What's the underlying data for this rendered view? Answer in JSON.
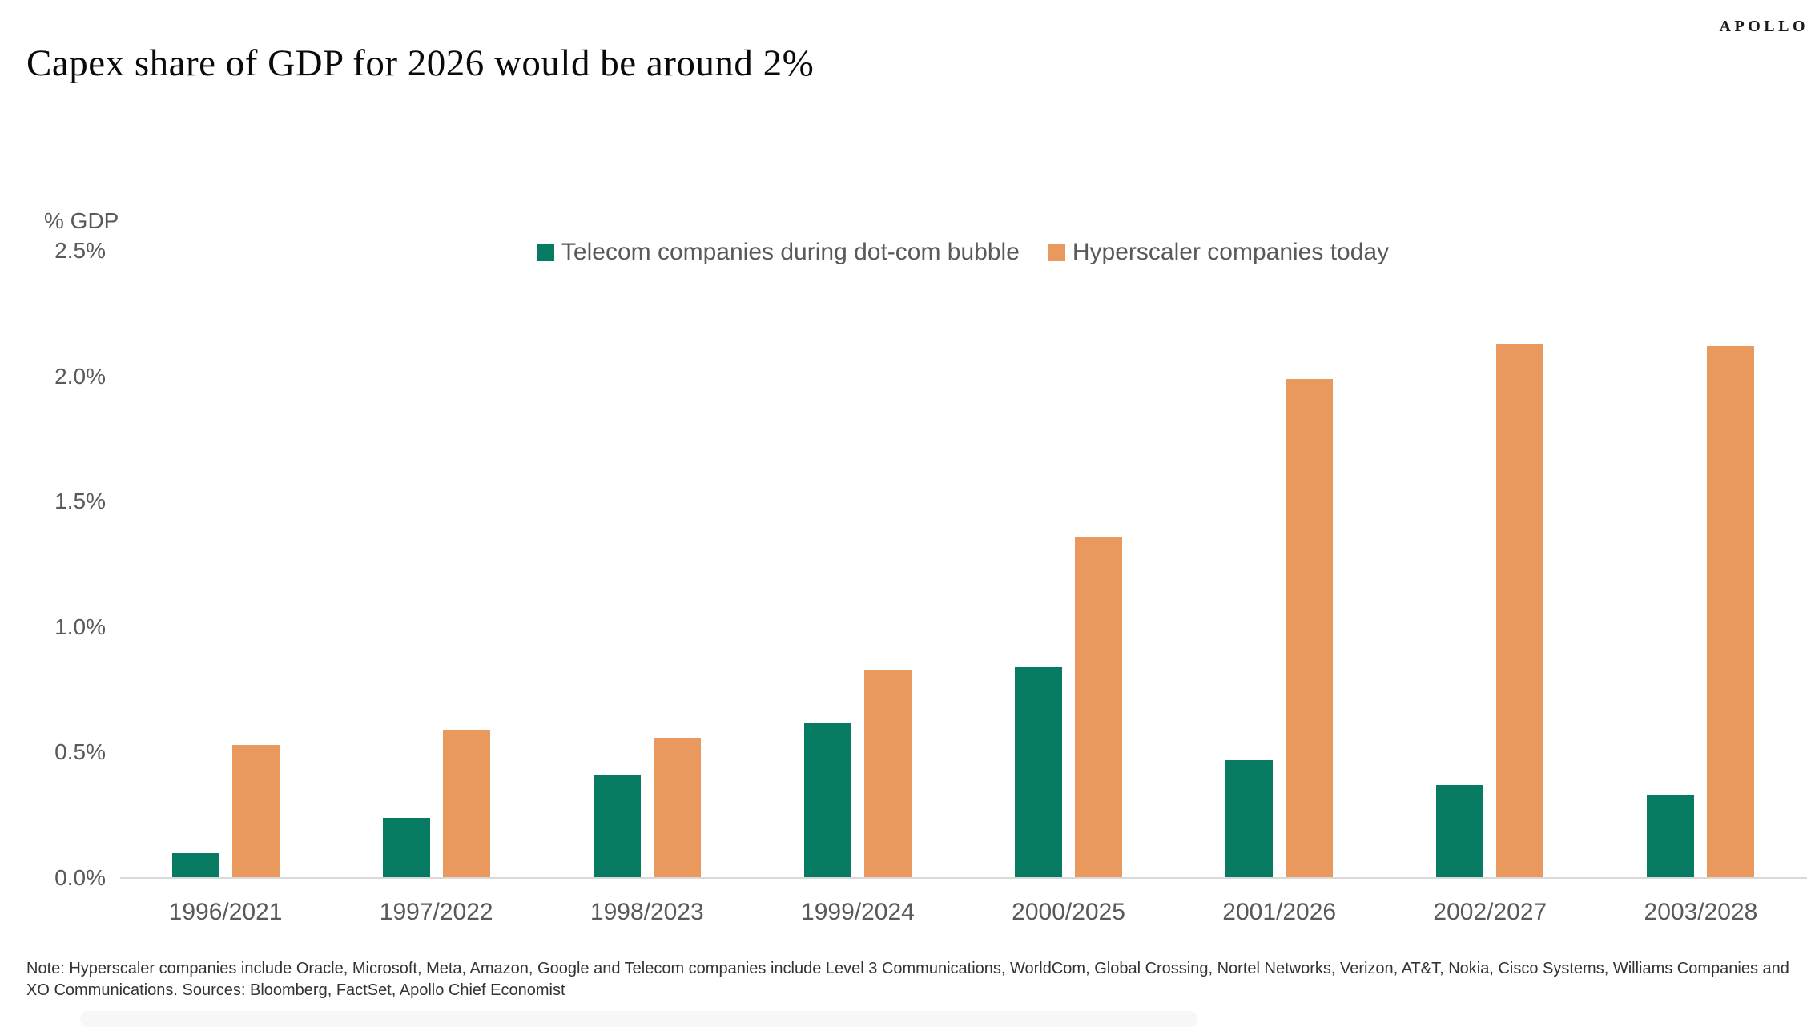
{
  "header": {
    "title": "Capex share of GDP for 2026 would be around 2%",
    "logo": "APOLLO"
  },
  "chart_data": {
    "type": "bar",
    "title": "Capex share of GDP for 2026 would be around 2%",
    "ylabel": "% GDP",
    "xlabel": "",
    "categories": [
      "1996/2021",
      "1997/2022",
      "1998/2023",
      "1999/2024",
      "2000/2025",
      "2001/2026",
      "2002/2027",
      "2003/2028"
    ],
    "series": [
      {
        "name": "Telecom companies during dot-com bubble",
        "color": "#067B61",
        "values": [
          0.1,
          0.24,
          0.41,
          0.62,
          0.84,
          0.47,
          0.37,
          0.33
        ]
      },
      {
        "name": "Hyperscaler companies today",
        "color": "#EA995E",
        "values": [
          0.53,
          0.59,
          0.56,
          0.83,
          1.36,
          1.99,
          2.13,
          2.12
        ]
      }
    ],
    "ylim": [
      0,
      2.5
    ],
    "ytick_labels": [
      "2.5%",
      "2.0%",
      "1.5%",
      "1.0%",
      "0.5%",
      "0.0%"
    ],
    "grid": false,
    "legend_position": "top-center",
    "axis_line_color": "#D9D9D9",
    "label_color": "#595959"
  },
  "footnote": "Note: Hyperscaler companies include Oracle, Microsoft, Meta, Amazon, Google and Telecom companies include Level 3 Communications, WorldCom, Global Crossing, Nortel Networks, Verizon, AT&T, Nokia, Cisco Systems, Williams Companies and XO Communications. Sources: Bloomberg, FactSet, Apollo Chief Economist"
}
